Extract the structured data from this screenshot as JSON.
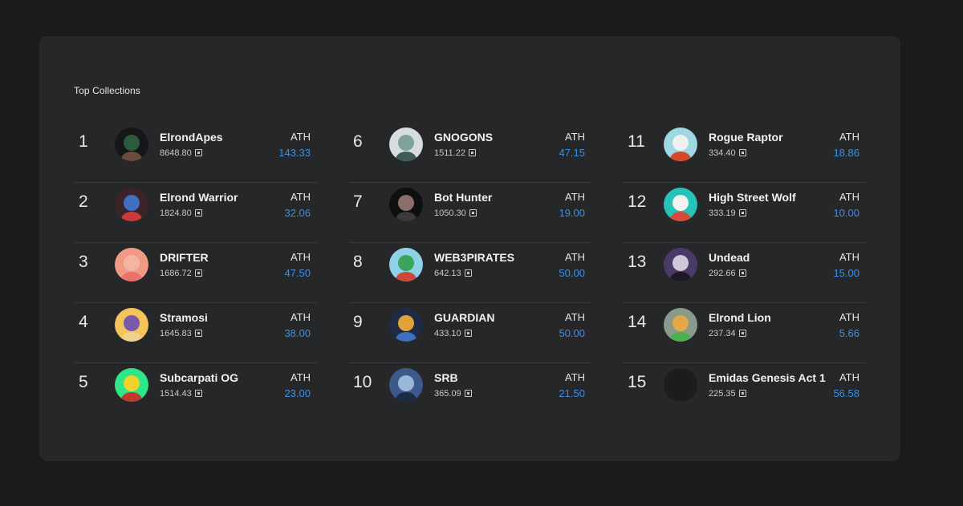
{
  "section": {
    "title": "Top Collections",
    "ath_label": "ATH"
  },
  "columns": [
    [
      {
        "rank": "1",
        "name": "ElrondApes",
        "volume": "8648.80",
        "ath": "143.33",
        "avatar_colors": [
          "#15161a",
          "#2c5a3a",
          "#6b4a3a"
        ]
      },
      {
        "rank": "2",
        "name": "Elrond Warrior",
        "volume": "1824.80",
        "ath": "32.06",
        "avatar_colors": [
          "#3a2428",
          "#3f6fc0",
          "#c93b3b"
        ]
      },
      {
        "rank": "3",
        "name": "DRIFTER",
        "volume": "1686.72",
        "ath": "47.50",
        "avatar_colors": [
          "#f09a86",
          "#f4b6a3",
          "#e8736a"
        ]
      },
      {
        "rank": "4",
        "name": "Stramosi",
        "volume": "1645.83",
        "ath": "38.00",
        "avatar_colors": [
          "#f2c45a",
          "#7a5aa8",
          "#f0d28a"
        ]
      },
      {
        "rank": "5",
        "name": "Subcarpati OG",
        "volume": "1514.43",
        "ath": "23.00",
        "avatar_colors": [
          "#2ee58a",
          "#f2d12a",
          "#c0392b"
        ]
      }
    ],
    [
      {
        "rank": "6",
        "name": "GNOGONS",
        "volume": "1511.22",
        "ath": "47.15",
        "avatar_colors": [
          "#d9dcdf",
          "#7fa39a",
          "#3d5c58"
        ]
      },
      {
        "rank": "7",
        "name": "Bot Hunter",
        "volume": "1050.30",
        "ath": "19.00",
        "avatar_colors": [
          "#0e0f11",
          "#8c6e66",
          "#3a3a3a"
        ]
      },
      {
        "rank": "8",
        "name": "WEB3PIRATES",
        "volume": "642.13",
        "ath": "50.00",
        "avatar_colors": [
          "#8ed1e8",
          "#3aa55a",
          "#c94a3a"
        ]
      },
      {
        "rank": "9",
        "name": "GUARDIAN",
        "volume": "433.10",
        "ath": "50.00",
        "avatar_colors": [
          "#1f2a44",
          "#e0a23a",
          "#3f6fc0"
        ]
      },
      {
        "rank": "10",
        "name": "SRB",
        "volume": "365.09",
        "ath": "21.50",
        "avatar_colors": [
          "#3b5a8a",
          "#9ab6d8",
          "#1c2b45"
        ]
      }
    ],
    [
      {
        "rank": "11",
        "name": "Rogue Raptor",
        "volume": "334.40",
        "ath": "18.86",
        "avatar_colors": [
          "#9ed8e0",
          "#f0f0f0",
          "#d9472b"
        ]
      },
      {
        "rank": "12",
        "name": "High Street Wolf",
        "volume": "333.19",
        "ath": "10.00",
        "avatar_colors": [
          "#26c2b8",
          "#f2f2f2",
          "#d94a3a"
        ]
      },
      {
        "rank": "13",
        "name": "Undead",
        "volume": "292.66",
        "ath": "15.00",
        "avatar_colors": [
          "#4a3a6a",
          "#cfc6d8",
          "#1c1a26"
        ]
      },
      {
        "rank": "14",
        "name": "Elrond Lion",
        "volume": "237.34",
        "ath": "5.66",
        "avatar_colors": [
          "#8a9a8a",
          "#e3a84a",
          "#4caf50"
        ]
      },
      {
        "rank": "15",
        "name": "Emidas Genesis Act 1",
        "volume": "225.35",
        "ath": "56.58",
        "avatar_colors": [
          "#1b1c1e",
          "#1b1c1e",
          "#1b1c1e"
        ]
      }
    ]
  ]
}
